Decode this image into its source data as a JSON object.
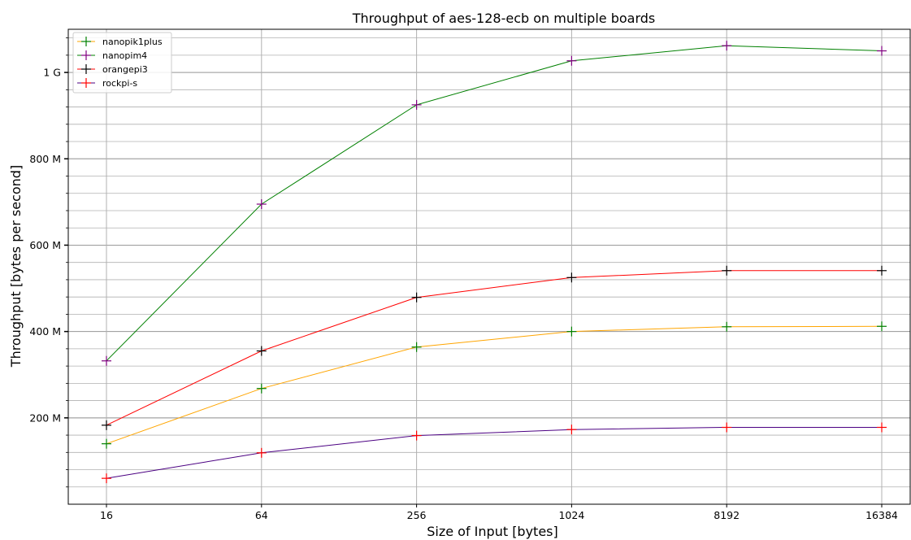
{
  "chart_data": {
    "type": "line",
    "title": "Throughput of aes-128-ecb on multiple boards",
    "xlabel": "Size of Input [bytes]",
    "ylabel": "Throughput [bytes per second]",
    "categories": [
      "16",
      "64",
      "256",
      "1024",
      "8192",
      "16384"
    ],
    "ylim": [
      0,
      1100000000
    ],
    "y_major_ticks": [
      {
        "value": 200000000,
        "label": "200 M"
      },
      {
        "value": 400000000,
        "label": "400 M"
      },
      {
        "value": 600000000,
        "label": "600 M"
      },
      {
        "value": 800000000,
        "label": "800 M"
      },
      {
        "value": 1000000000,
        "label": "1 G"
      }
    ],
    "y_minor_step": 40000000,
    "grid": true,
    "legend_position": "top-left",
    "series": [
      {
        "name": "nanopik1plus",
        "line_color": "#ffa500",
        "marker_color": "#008000",
        "values": [
          140000000,
          268000000,
          364000000,
          400000000,
          411000000,
          412000000
        ]
      },
      {
        "name": "nanopim4",
        "line_color": "#008000",
        "marker_color": "#800080",
        "values": [
          332000000,
          695000000,
          925000000,
          1027000000,
          1062000000,
          1050000000
        ]
      },
      {
        "name": "orangepi3",
        "line_color": "#ff0000",
        "marker_color": "#000000",
        "values": [
          183000000,
          355000000,
          479000000,
          525000000,
          541000000,
          541000000
        ]
      },
      {
        "name": "rockpi-s",
        "line_color": "#4b0082",
        "marker_color": "#ff0000",
        "values": [
          60000000,
          119000000,
          159000000,
          173000000,
          178000000,
          178000000
        ]
      }
    ]
  }
}
